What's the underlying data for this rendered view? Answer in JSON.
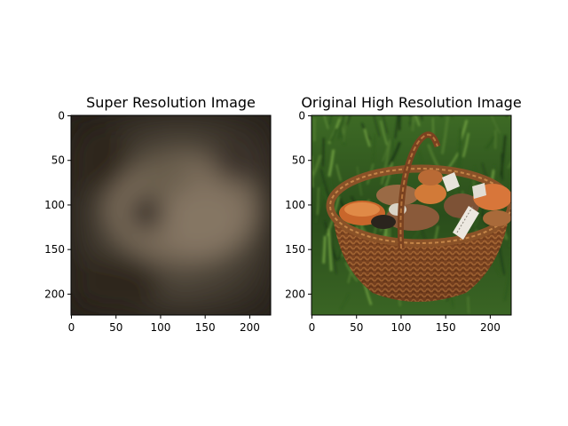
{
  "colors": {
    "background": "#ffffff",
    "axis": "#000000",
    "blur_dark": "#262019",
    "blur_mid": "#4a4338",
    "blur_light": "#766a5a",
    "grass_dark": "#1f3a17",
    "grass_light": "#4f7a2e",
    "basket_dark": "#5a2e16",
    "basket_light": "#a0602e",
    "cap_orange": "#c9662b",
    "cap_brown": "#8a5a3a",
    "stem_white": "#e8e4dc"
  },
  "chart_data": [
    {
      "type": "image",
      "title": "Super Resolution Image",
      "xlabel": "",
      "ylabel": "",
      "xlim": [
        0,
        224
      ],
      "ylim": [
        224,
        0
      ],
      "xticks": [
        0,
        50,
        100,
        150,
        200
      ],
      "yticks": [
        0,
        50,
        100,
        150,
        200
      ],
      "content": "blurry-brown-image"
    },
    {
      "type": "image",
      "title": "Original High Resolution Image",
      "xlabel": "",
      "ylabel": "",
      "xlim": [
        0,
        224
      ],
      "ylim": [
        224,
        0
      ],
      "xticks": [
        0,
        50,
        100,
        150,
        200
      ],
      "yticks": [
        0,
        50,
        100,
        150,
        200
      ],
      "content": "basket-of-mushrooms-on-grass"
    }
  ]
}
